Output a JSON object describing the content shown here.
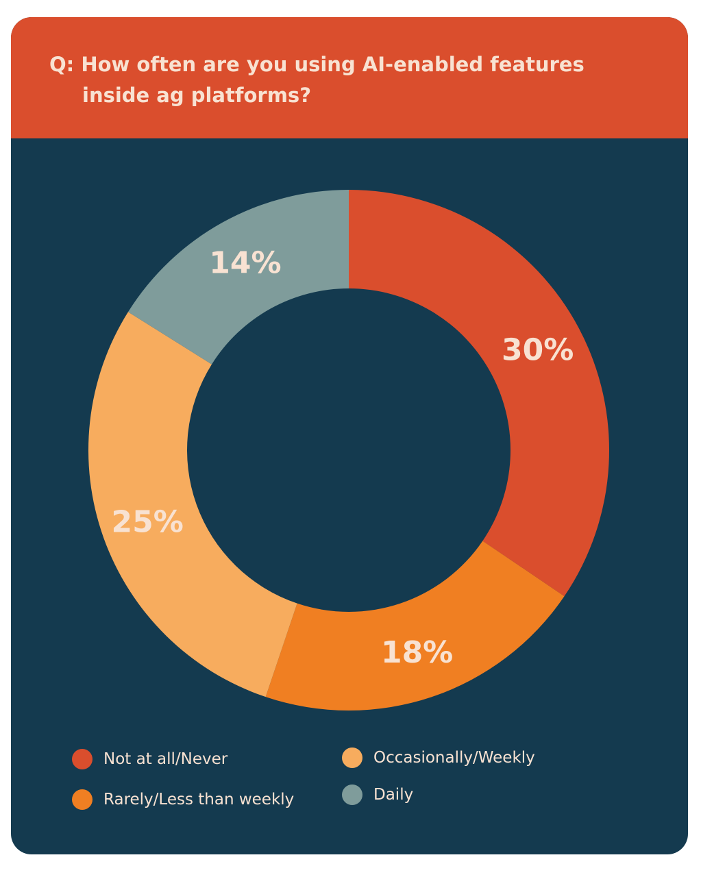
{
  "title": {
    "line1": "Q: How often are you using AI-enabled features",
    "line2": "inside ag platforms?"
  },
  "colors": {
    "background": "#143a4f",
    "header": "#da4e2d",
    "text": "#f8e2d2"
  },
  "chart_data": {
    "type": "pie",
    "donut": true,
    "values": [
      30,
      18,
      25,
      14
    ],
    "labels": [
      "30%",
      "18%",
      "25%",
      "14%"
    ],
    "legend": [
      {
        "name": "Not at all/Never",
        "color": "#da4e2d"
      },
      {
        "name": "Rarely/Less than weekly",
        "color": "#f07f22"
      },
      {
        "name": "Occasionally/Weekly",
        "color": "#f7ac5e"
      },
      {
        "name": "Daily",
        "color": "#7f9c9b"
      }
    ],
    "legend_position": "bottom"
  }
}
